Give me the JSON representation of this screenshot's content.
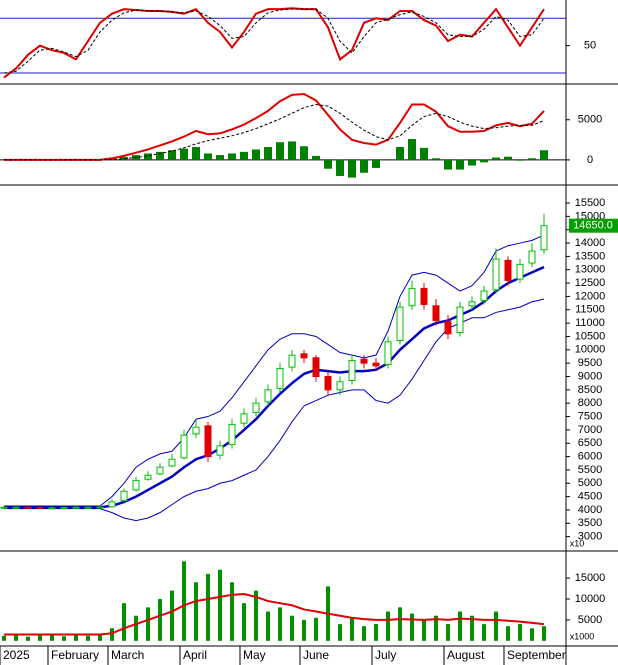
{
  "chart_data": [
    {
      "type": "stochastic",
      "ylim": [
        8,
        100
      ],
      "yticks": [
        50
      ],
      "reference_lines": [
        80,
        20
      ],
      "reference_color": "#2020c0",
      "series": [
        {
          "name": "K",
          "color": "#e00000",
          "values": [
            15,
            25,
            40,
            50,
            45,
            42,
            35,
            55,
            75,
            85,
            90,
            89,
            88,
            88,
            87,
            85,
            90,
            75,
            65,
            48,
            65,
            85,
            90,
            90,
            91,
            90,
            90,
            70,
            35,
            45,
            75,
            80,
            78,
            88,
            88,
            78,
            72,
            55,
            62,
            60,
            75,
            90,
            70,
            50,
            70,
            90
          ]
        },
        {
          "name": "D",
          "color": "#000000",
          "dashed": true,
          "values": [
            20,
            22,
            33,
            45,
            47,
            43,
            38,
            45,
            65,
            78,
            86,
            89,
            88,
            88,
            87,
            86,
            88,
            82,
            72,
            58,
            60,
            75,
            86,
            89,
            90,
            90,
            90,
            80,
            55,
            42,
            60,
            75,
            79,
            84,
            87,
            82,
            75,
            62,
            60,
            60,
            68,
            82,
            78,
            60,
            62,
            80
          ]
        }
      ]
    },
    {
      "type": "macd",
      "ylim": [
        -3000,
        9200
      ],
      "yticks": [
        0,
        5000
      ],
      "series": [
        {
          "name": "MACD",
          "color": "#e00000",
          "values": [
            0,
            0,
            0,
            0,
            0,
            0,
            0,
            0,
            0,
            200,
            500,
            900,
            1300,
            1800,
            2300,
            2900,
            3600,
            3200,
            3300,
            3800,
            4400,
            5200,
            6100,
            7300,
            8100,
            8200,
            7400,
            5600,
            3800,
            2500,
            2100,
            1900,
            2500,
            4600,
            6900,
            6900,
            6000,
            4200,
            3500,
            3500,
            3600,
            4300,
            4600,
            4200,
            4500,
            6100
          ]
        },
        {
          "name": "Signal",
          "color": "#000000",
          "dashed": true,
          "values": [
            0,
            0,
            0,
            0,
            0,
            0,
            0,
            0,
            0,
            50,
            150,
            300,
            500,
            800,
            1100,
            1500,
            2000,
            2400,
            2700,
            3000,
            3400,
            3900,
            4500,
            5100,
            5800,
            6500,
            6900,
            6700,
            5800,
            4700,
            3700,
            2900,
            2500,
            3000,
            4300,
            5400,
            5800,
            5400,
            4700,
            4200,
            3900,
            4000,
            4200,
            4300,
            4300,
            4900
          ]
        },
        {
          "name": "Histogram",
          "color": "#008000",
          "histogram": true,
          "values": [
            0,
            0,
            0,
            0,
            0,
            0,
            0,
            0,
            0,
            150,
            350,
            600,
            800,
            1000,
            1200,
            1400,
            1600,
            800,
            600,
            800,
            1000,
            1300,
            1600,
            2200,
            2300,
            1700,
            500,
            -1100,
            -2000,
            -2200,
            -1600,
            -1000,
            0,
            1600,
            2600,
            1500,
            200,
            -1200,
            -1200,
            -700,
            -300,
            300,
            400,
            -100,
            200,
            1200
          ]
        }
      ]
    },
    {
      "type": "candlestick",
      "ylim": [
        2500,
        16100
      ],
      "yticks": [
        3000,
        3500,
        4000,
        4500,
        5000,
        5500,
        6000,
        6500,
        7000,
        7500,
        8000,
        8500,
        9000,
        9500,
        10000,
        10500,
        11000,
        11500,
        12000,
        12500,
        13000,
        13500,
        14000,
        14500,
        15000,
        15500
      ],
      "up_color": "#00c000",
      "down_color": "#e00000",
      "scale_note": "x10",
      "last_price": {
        "value": 14650,
        "label": "14650.0"
      },
      "open": [
        4100,
        4100,
        4100,
        4090,
        4080,
        4080,
        4090,
        4100,
        4100,
        4120,
        4350,
        4750,
        5150,
        5350,
        5650,
        5950,
        6850,
        7150,
        6050,
        6450,
        7250,
        7650,
        8050,
        8550,
        9350,
        9850,
        9700,
        9000,
        8500,
        8850,
        9650,
        9500,
        9450,
        10350,
        11650,
        12300,
        11650,
        11050,
        10650,
        11650,
        11850,
        12250,
        13350,
        12650,
        13250,
        13750
      ],
      "high": [
        4150,
        4150,
        4150,
        4140,
        4130,
        4140,
        4150,
        4150,
        4160,
        4400,
        4800,
        5250,
        5450,
        5750,
        6100,
        7000,
        7400,
        7300,
        6600,
        7400,
        7800,
        8200,
        8700,
        9500,
        10000,
        10000,
        9800,
        9200,
        9000,
        9800,
        9800,
        9700,
        10500,
        11800,
        12600,
        12500,
        11900,
        11300,
        11800,
        12000,
        12400,
        13800,
        13500,
        13400,
        14000,
        15100
      ],
      "low": [
        4050,
        4050,
        4050,
        4040,
        4030,
        4040,
        4050,
        4050,
        4060,
        4100,
        4300,
        4700,
        5100,
        5300,
        5600,
        5900,
        6700,
        5800,
        5900,
        6300,
        7100,
        7500,
        7900,
        8400,
        9200,
        9500,
        8800,
        8300,
        8300,
        8700,
        9300,
        9200,
        9300,
        10200,
        11500,
        11500,
        10900,
        10400,
        10500,
        11500,
        11700,
        12100,
        12400,
        12500,
        13100,
        13600
      ],
      "close": [
        4100,
        4100,
        4090,
        4080,
        4080,
        4090,
        4100,
        4100,
        4110,
        4300,
        4700,
        5100,
        5300,
        5600,
        5900,
        6800,
        7100,
        6000,
        6400,
        7200,
        7600,
        8000,
        8500,
        9300,
        9800,
        9700,
        9000,
        8500,
        8800,
        9600,
        9500,
        9400,
        10300,
        11600,
        12300,
        11700,
        11100,
        10600,
        11600,
        11800,
        12200,
        13400,
        12600,
        13200,
        13700,
        14650
      ],
      "series": [
        {
          "name": "MA",
          "color": "#0000c0",
          "width": 2.5,
          "values": [
            4100,
            4100,
            4100,
            4100,
            4100,
            4100,
            4100,
            4100,
            4100,
            4150,
            4300,
            4500,
            4750,
            5000,
            5250,
            5600,
            5900,
            6050,
            6300,
            6600,
            7000,
            7400,
            7900,
            8350,
            8750,
            9100,
            9250,
            9200,
            9150,
            9200,
            9200,
            9250,
            9500,
            10000,
            10400,
            10800,
            11000,
            11100,
            11300,
            11500,
            11800,
            12200,
            12500,
            12700,
            12900,
            13100
          ]
        },
        {
          "name": "Upper",
          "color": "#0000c0",
          "width": 1,
          "values": [
            4150,
            4150,
            4150,
            4150,
            4150,
            4150,
            4150,
            4150,
            4150,
            4500,
            5000,
            5600,
            5900,
            6100,
            6200,
            6700,
            7400,
            7500,
            7700,
            8200,
            8800,
            9400,
            10000,
            10400,
            10600,
            10600,
            10500,
            10200,
            9900,
            9800,
            9700,
            9800,
            10700,
            12000,
            12800,
            12900,
            12800,
            12500,
            12200,
            12400,
            12900,
            13700,
            13900,
            14000,
            14100,
            14300
          ]
        },
        {
          "name": "Lower",
          "color": "#0000c0",
          "width": 1,
          "values": [
            4050,
            4050,
            4050,
            4050,
            4050,
            4050,
            4050,
            4050,
            4050,
            3900,
            3700,
            3600,
            3700,
            3900,
            4200,
            4500,
            4700,
            4800,
            5000,
            5100,
            5300,
            5500,
            6000,
            6600,
            7300,
            7900,
            8100,
            8300,
            8400,
            8500,
            8500,
            8100,
            8000,
            8300,
            8900,
            9600,
            10300,
            10800,
            11000,
            11200,
            11200,
            11400,
            11500,
            11600,
            11800,
            11900
          ]
        }
      ]
    },
    {
      "type": "bar",
      "ylim": [
        -1000,
        21000
      ],
      "yticks": [
        5000,
        10000,
        15000
      ],
      "color": "#009000",
      "scale_note": "x1000",
      "categories": [
        "2025",
        null,
        null,
        null,
        "February",
        null,
        null,
        null,
        null,
        "March",
        null,
        null,
        null,
        null,
        null,
        "April",
        null,
        null,
        null,
        null,
        "May",
        null,
        null,
        null,
        null,
        "June",
        null,
        null,
        null,
        null,
        null,
        "July",
        null,
        null,
        null,
        null,
        null,
        "August",
        null,
        null,
        null,
        null,
        "September",
        null,
        null,
        null
      ],
      "values": [
        1200,
        1500,
        1000,
        1300,
        1400,
        1100,
        1500,
        1200,
        1600,
        3000,
        9000,
        6000,
        8000,
        10000,
        12000,
        19000,
        14000,
        16000,
        17000,
        14000,
        9000,
        12000,
        7000,
        8000,
        6000,
        5000,
        5500,
        13000,
        4000,
        5500,
        3500,
        4000,
        7000,
        8000,
        6500,
        5000,
        6000,
        4000,
        7000,
        6000,
        4000,
        7000,
        3500,
        4000,
        3000,
        3500
      ],
      "series": [
        {
          "name": "Volume MA",
          "color": "#e00000",
          "values": [
            1500,
            1500,
            1500,
            1500,
            1500,
            1500,
            1500,
            1500,
            1500,
            1800,
            3000,
            4000,
            5000,
            6000,
            7000,
            8500,
            9500,
            10000,
            10500,
            11000,
            11200,
            10500,
            9500,
            9000,
            8500,
            7500,
            7000,
            6500,
            6000,
            5500,
            5200,
            5000,
            5000,
            5200,
            5100,
            5000,
            5200,
            5000,
            5300,
            5200,
            5000,
            5000,
            4800,
            4600,
            4300,
            4000
          ]
        }
      ]
    }
  ]
}
